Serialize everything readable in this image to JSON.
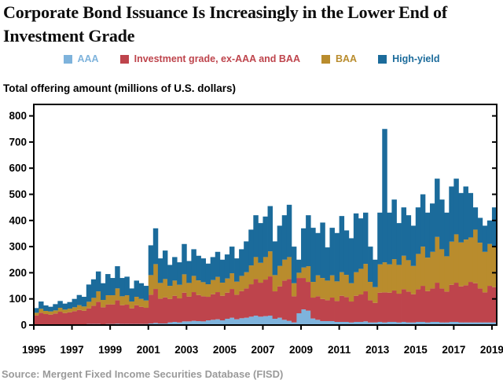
{
  "title": {
    "line1": "Corporate Bond Issuance Is Increasingly in the Lower End of",
    "line2": "Investment Grade"
  },
  "subtitle": "Total offering amount (millions of U.S. dollars)",
  "source_note": "Source: Mergent Fixed Income Securities Database (FISD)",
  "legend": {
    "items": [
      {
        "label": "AAA",
        "color": "#7EB3DC"
      },
      {
        "label": "Investment grade, ex-AAA and BAA",
        "color": "#BE444C"
      },
      {
        "label": "BAA",
        "color": "#B98C2D"
      },
      {
        "label": "High-yield",
        "color": "#1B6B9B"
      }
    ]
  },
  "chart_data": {
    "type": "bar",
    "stacked": true,
    "frequency": "quarterly",
    "x_start": "1995Q1",
    "x_end": "2019Q1",
    "x_tick_years": [
      1995,
      1997,
      1999,
      2001,
      2003,
      2005,
      2007,
      2009,
      2011,
      2013,
      2015,
      2017,
      2019
    ],
    "ylim": [
      0,
      800
    ],
    "y_ticks": [
      0,
      100,
      200,
      300,
      400,
      500,
      600,
      700,
      800
    ],
    "grid": false,
    "legend_position": "top",
    "frame_color": "#000000",
    "series": [
      {
        "name": "AAA",
        "color": "#7EB3DC",
        "values": [
          2,
          2,
          2,
          2,
          2,
          3,
          2,
          3,
          3,
          3,
          3,
          4,
          4,
          4,
          3,
          4,
          4,
          5,
          4,
          4,
          4,
          4,
          4,
          4,
          6,
          8,
          6,
          6,
          10,
          12,
          10,
          14,
          14,
          16,
          15,
          14,
          18,
          20,
          22,
          18,
          24,
          28,
          22,
          26,
          28,
          32,
          36,
          32,
          34,
          36,
          24,
          28,
          20,
          16,
          10,
          45,
          60,
          55,
          25,
          20,
          15,
          15,
          15,
          12,
          12,
          12,
          10,
          12,
          12,
          14,
          10,
          10,
          12,
          10,
          12,
          12,
          10,
          12,
          10,
          10,
          12,
          12,
          10,
          12,
          12,
          10,
          10,
          12,
          12,
          10,
          10,
          10,
          10,
          10,
          10,
          10,
          10
        ]
      },
      {
        "name": "Investment grade, ex-AAA and BAA",
        "color": "#BE444C",
        "values": [
          35,
          45,
          40,
          38,
          42,
          48,
          44,
          46,
          50,
          55,
          52,
          60,
          70,
          85,
          65,
          75,
          75,
          90,
          72,
          74,
          60,
          72,
          66,
          62,
          110,
          130,
          95,
          100,
          90,
          100,
          92,
          110,
          95,
          110,
          100,
          96,
          90,
          98,
          104,
          94,
          100,
          110,
          94,
          104,
          112,
          124,
          140,
          130,
          140,
          150,
          105,
          120,
          150,
          160,
          100,
          135,
          120,
          110,
          80,
          90,
          85,
          80,
          90,
          80,
          100,
          95,
          80,
          100,
          105,
          115,
          85,
          75,
          112,
          115,
          112,
          120,
          110,
          125,
          118,
          108,
          125,
          138,
          120,
          128,
          150,
          130,
          118,
          142,
          150,
          138,
          142,
          155,
          150,
          130,
          115,
          140,
          135
        ]
      },
      {
        "name": "BAA",
        "color": "#B98C2D",
        "values": [
          10,
          15,
          12,
          12,
          12,
          15,
          13,
          14,
          15,
          18,
          16,
          25,
          30,
          40,
          28,
          35,
          35,
          45,
          34,
          36,
          26,
          32,
          30,
          28,
          75,
          95,
          60,
          70,
          50,
          58,
          52,
          70,
          52,
          62,
          56,
          54,
          48,
          54,
          58,
          50,
          54,
          60,
          50,
          58,
          62,
          72,
          84,
          76,
          86,
          96,
          62,
          78,
          80,
          84,
          50,
          20,
          40,
          60,
          60,
          80,
          80,
          75,
          85,
          75,
          90,
          85,
          70,
          90,
          98,
          105,
          70,
          60,
          108,
          115,
          108,
          120,
          110,
          128,
          120,
          108,
          135,
          150,
          128,
          140,
          175,
          150,
          135,
          165,
          185,
          168,
          175,
          170,
          205,
          175,
          155,
          160,
          155
        ]
      },
      {
        "name": "High-yield",
        "color": "#1B6B9B",
        "values": [
          18,
          28,
          21,
          18,
          24,
          26,
          23,
          25,
          32,
          39,
          37,
          66,
          71,
          76,
          64,
          81,
          66,
          85,
          70,
          71,
          50,
          62,
          60,
          56,
          114,
          137,
          94,
          109,
          80,
          90,
          86,
          116,
          84,
          102,
          94,
          91,
          79,
          88,
          96,
          88,
          92,
          102,
          89,
          102,
          118,
          137,
          160,
          152,
          155,
          173,
          129,
          154,
          170,
          200,
          140,
          50,
          150,
          195,
          207,
          162,
          212,
          127,
          182,
          185,
          215,
          170,
          172,
          225,
          193,
          196,
          135,
          105,
          198,
          510,
          198,
          228,
          160,
          185,
          172,
          154,
          178,
          200,
          172,
          185,
          223,
          190,
          167,
          211,
          213,
          189,
          203,
          170,
          85,
          95,
          100,
          90,
          150
        ]
      }
    ]
  }
}
